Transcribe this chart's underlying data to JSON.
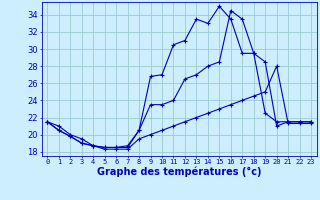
{
  "title": "Graphe des températures (°c)",
  "background_color": "#cceeff",
  "grid_color": "#99cccc",
  "line_color": "#0000bb",
  "x_labels": [
    "0",
    "1",
    "2",
    "3",
    "4",
    "5",
    "6",
    "7",
    "8",
    "9",
    "10",
    "11",
    "12",
    "13",
    "14",
    "15",
    "16",
    "17",
    "18",
    "19",
    "20",
    "21",
    "22",
    "23"
  ],
  "ylim": [
    17.5,
    35.5
  ],
  "yticks": [
    18,
    20,
    22,
    24,
    26,
    28,
    30,
    32,
    34
  ],
  "line1_max": [
    21.5,
    20.5,
    19.8,
    19.0,
    18.7,
    18.5,
    18.5,
    18.7,
    20.5,
    26.8,
    27.0,
    30.5,
    31.0,
    33.5,
    33.0,
    35.0,
    33.5,
    29.5,
    29.5,
    22.5,
    21.5,
    21.5,
    21.5,
    21.5
  ],
  "line2_mid": [
    21.5,
    20.5,
    19.8,
    19.0,
    18.7,
    18.5,
    18.5,
    18.5,
    20.5,
    23.5,
    23.5,
    24.0,
    26.5,
    27.0,
    28.0,
    28.5,
    34.5,
    33.5,
    29.5,
    28.5,
    21.0,
    21.5,
    21.5,
    21.5
  ],
  "line3_min": [
    21.5,
    21.0,
    20.0,
    19.5,
    18.7,
    18.3,
    18.3,
    18.3,
    19.5,
    20.0,
    20.5,
    21.0,
    21.5,
    22.0,
    22.5,
    23.0,
    23.5,
    24.0,
    24.5,
    25.0,
    28.0,
    21.3,
    21.3,
    21.3
  ]
}
